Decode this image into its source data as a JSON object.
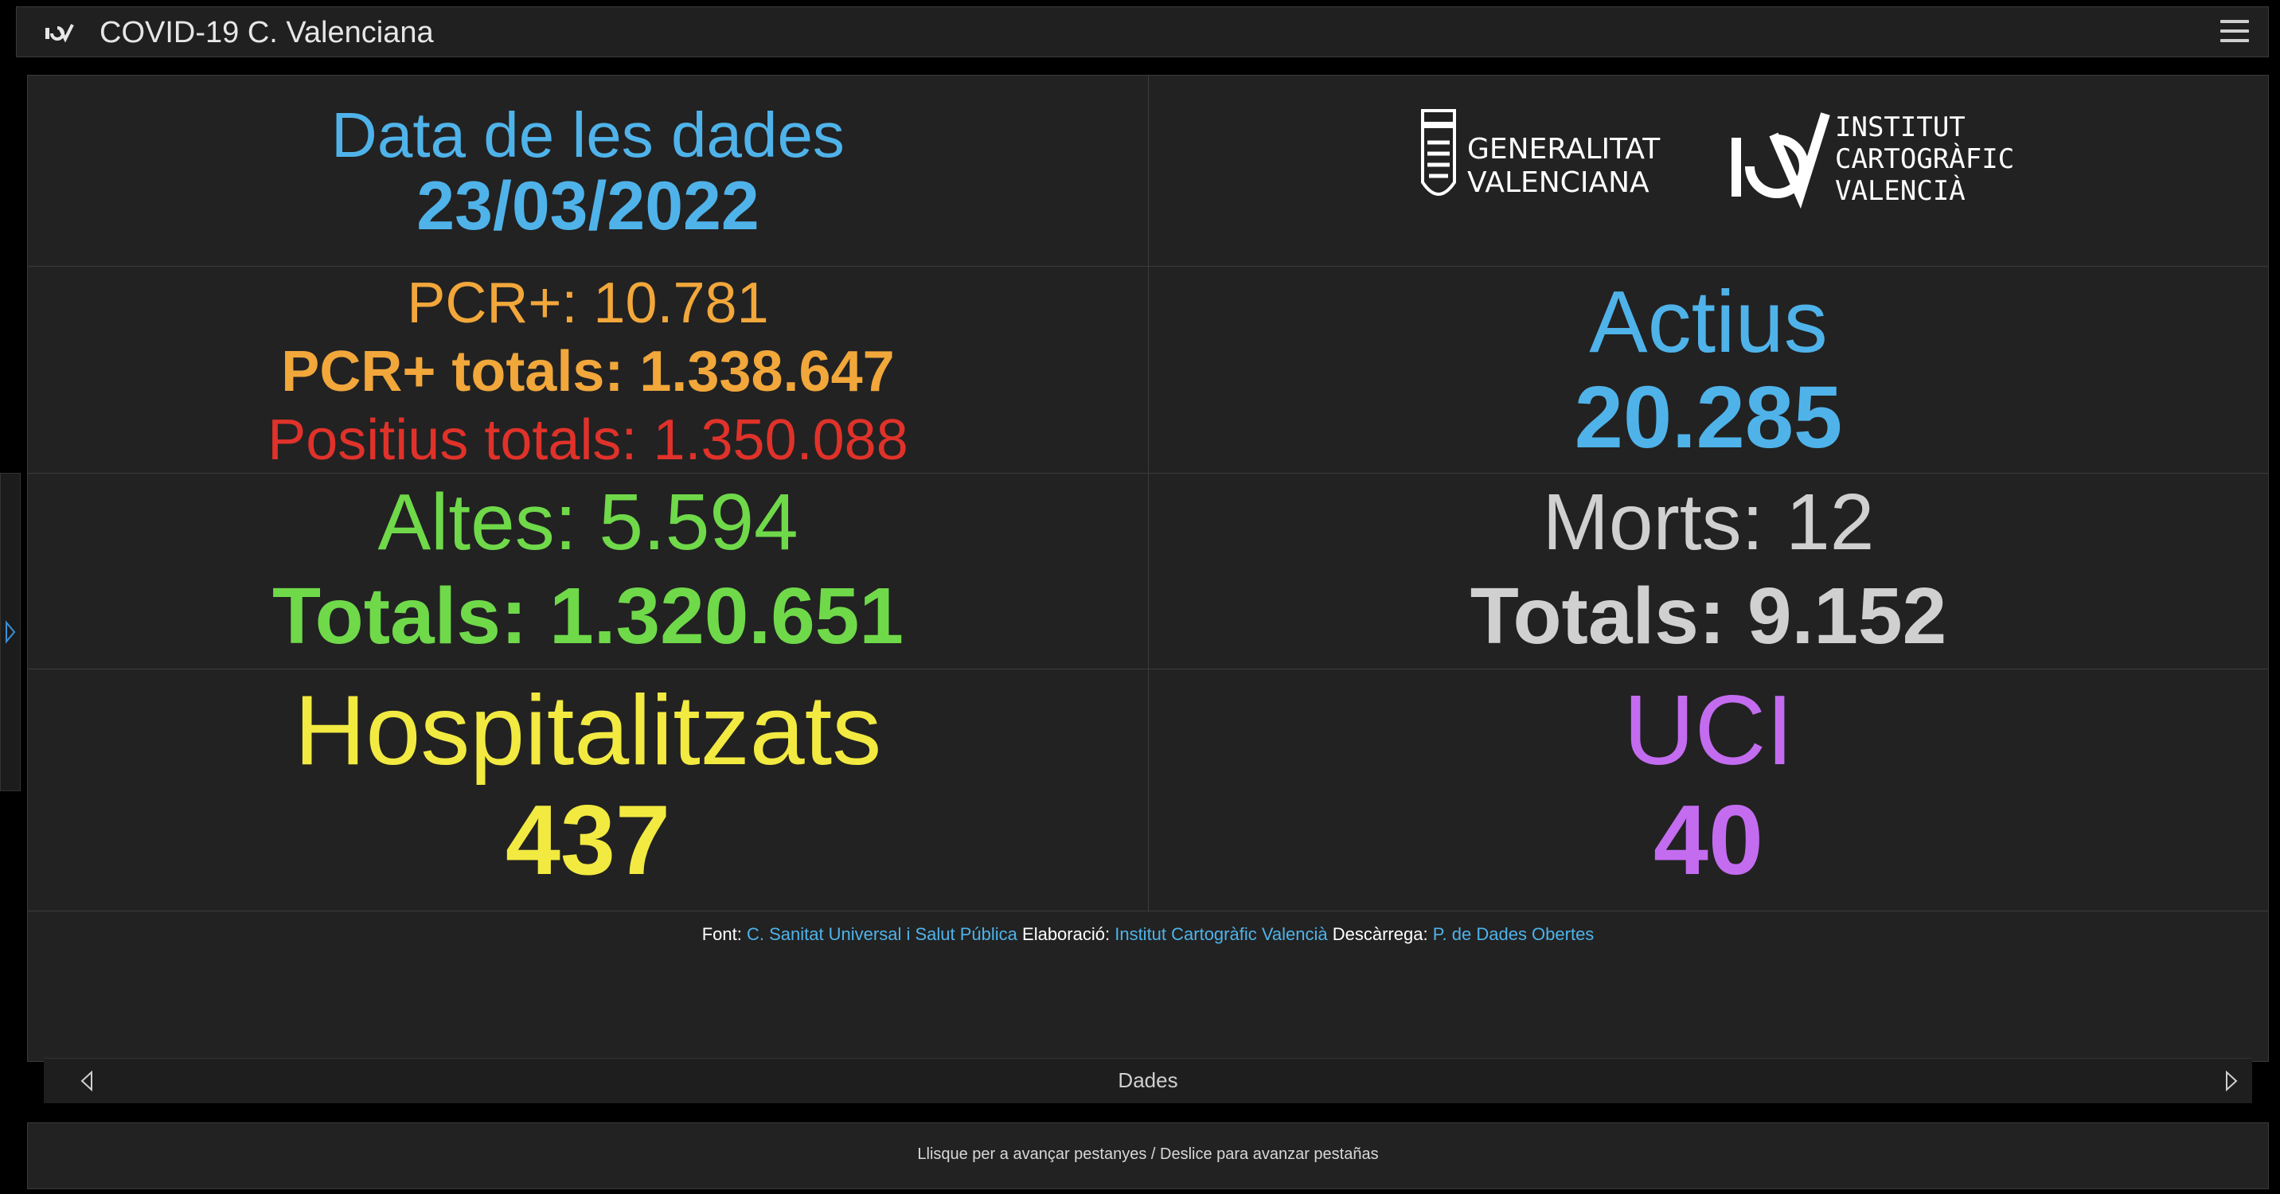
{
  "app": {
    "title": "COVID-19 C. Valenciana",
    "logo_icon": "icv-logo-icon",
    "menu_icon": "hamburger-menu-icon"
  },
  "date_card": {
    "label": "Data de les dades",
    "value": "23/03/2022"
  },
  "logos": {
    "generalitat_line1": "GENERALITAT",
    "generalitat_line2": "VALENCIANA",
    "icv_line1": "INSTITUT",
    "icv_line2": "CARTOGRÀFIC",
    "icv_line3": "VALENCIÀ"
  },
  "pcr_card": {
    "daily": "PCR+: 10.781",
    "totals": "PCR+ totals: 1.338.647",
    "positives_totals": "Positius totals: 1.350.088"
  },
  "actius_card": {
    "label": "Actius",
    "value": "20.285"
  },
  "altes_card": {
    "daily": "Altes: 5.594",
    "totals": "Totals: 1.320.651"
  },
  "morts_card": {
    "daily": "Morts: 12",
    "totals": "Totals: 9.152"
  },
  "hospital_card": {
    "label": "Hospitalitzats",
    "value": "437"
  },
  "uci_card": {
    "label": "UCI",
    "value": "40"
  },
  "credits": {
    "font_label": "Font:",
    "font_link": "C. Sanitat Universal i Salut Pública",
    "elaboracio_label": "Elaboració:",
    "elaboracio_link": "Institut Cartogràfic Valencià",
    "descarrega_label": "Descàrrega:",
    "descarrega_link": "P. de Dades Obertes"
  },
  "pager": {
    "label": "Dades"
  },
  "bottom": {
    "hint": "Llisque per a avançar pestanyes / Deslice para avanzar pestañas"
  },
  "colors": {
    "blue": "#4fb3ea",
    "orange": "#f2a73b",
    "red": "#e0322a",
    "green": "#6fd94a",
    "grey": "#d0d0d0",
    "yellow": "#f2ea40",
    "purple": "#c36cf0"
  }
}
